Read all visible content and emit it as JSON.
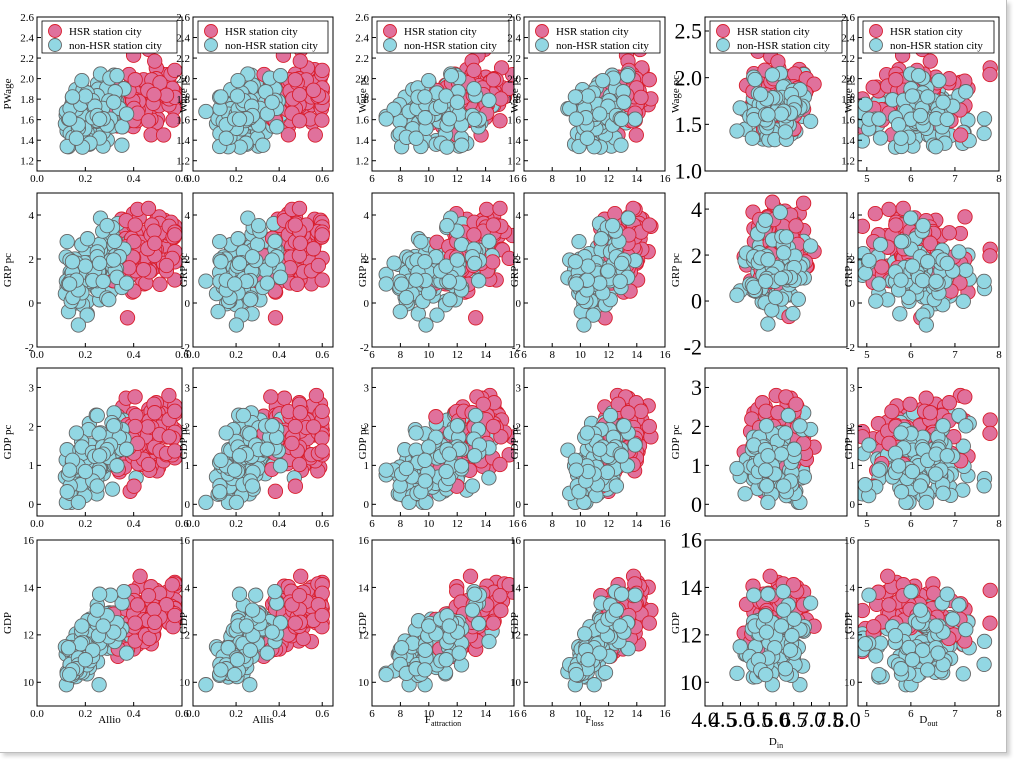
{
  "chart_data": {
    "type": "scatter",
    "legend": {
      "entries": [
        "HSR station city",
        "non-HSR station city"
      ],
      "placement": "top",
      "colors": {
        "HSR station city": "#e0719c",
        "non-HSR station city": "#92d7e3"
      }
    },
    "series_colors": {
      "hsr_fill": "#e0719c",
      "hsr_edge": "#d81e2c",
      "non_hsr_fill": "#92d7e3",
      "non_hsr_edge": "#666666"
    },
    "columns": [
      {
        "xlabel": "Allio",
        "xlabel_sub": "",
        "xlim": [
          0,
          0.6
        ],
        "xticks": [
          "0.0",
          "0.2",
          "0.4",
          "0.6"
        ],
        "xtick_values": [
          0,
          0.2,
          0.4,
          0.6
        ]
      },
      {
        "xlabel": "Allis",
        "xlabel_sub": "",
        "xlim": [
          0,
          0.65
        ],
        "xticks": [
          "0.0",
          "0.2",
          "0.4",
          "0.6"
        ],
        "xtick_values": [
          0,
          0.2,
          0.4,
          0.6
        ]
      },
      {
        "xlabel": "F",
        "xlabel_sub": "attraction",
        "xlim": [
          6,
          16
        ],
        "xticks": [
          "6",
          "8",
          "10",
          "12",
          "14",
          "16"
        ],
        "xtick_values": [
          6,
          8,
          10,
          12,
          14,
          16
        ]
      },
      {
        "xlabel": "F",
        "xlabel_sub": "loss",
        "xlim": [
          6,
          16
        ],
        "xticks": [
          "6",
          "8",
          "10",
          "12",
          "14",
          "16"
        ],
        "xtick_values": [
          6,
          8,
          10,
          12,
          14,
          16
        ]
      },
      {
        "xlabel": "D",
        "xlabel_sub": "in",
        "xlim": [
          4.0,
          8.0
        ],
        "xticks": [
          "4.0",
          "4.5",
          "5.0",
          "5.5",
          "6.0",
          "6.5",
          "7.0",
          "7.5",
          "8.0"
        ],
        "xtick_values": [
          4.0,
          4.5,
          5.0,
          5.5,
          6.0,
          6.5,
          7.0,
          7.5,
          8.0
        ]
      },
      {
        "xlabel": "D",
        "xlabel_sub": "out",
        "xlim": [
          4.8,
          8
        ],
        "xticks": [
          "5",
          "6",
          "7",
          "8"
        ],
        "xtick_values": [
          5,
          6,
          7,
          8
        ]
      }
    ],
    "rows": [
      {
        "ylabel": "Wage pc",
        "ylim": [
          1.1,
          2.6
        ],
        "yticks": [
          "1.2",
          "1.4",
          "1.6",
          "1.8",
          "2.0",
          "2.2",
          "2.4",
          "2.6"
        ],
        "ytick_values": [
          1.2,
          1.4,
          1.6,
          1.8,
          2.0,
          2.2,
          2.4,
          2.6
        ]
      },
      {
        "ylabel": "GRP pc",
        "ylim": [
          -2,
          5
        ],
        "yticks": [
          "-2",
          "0",
          "2",
          "4"
        ],
        "ytick_values": [
          -2,
          0,
          2,
          4
        ]
      },
      {
        "ylabel": "GDP pc",
        "ylim": [
          -0.3,
          3.5
        ],
        "yticks": [
          "0",
          "1",
          "2",
          "3"
        ],
        "ytick_values": [
          0,
          1,
          2,
          3
        ]
      },
      {
        "ylabel": "GDP",
        "ylim": [
          9,
          16
        ],
        "yticks": [
          "10",
          "12",
          "14",
          "16"
        ],
        "ytick_values": [
          10,
          12,
          14,
          16
        ]
      }
    ],
    "panel_ylabels": [
      [
        "PWage",
        "Wage pc",
        "Wage pc",
        "Wage pc",
        "Wage pc",
        "Wage pc"
      ],
      [
        "GRP pc",
        "GRP pc",
        "GRP pc",
        "GRP pc",
        "GRP pc",
        "GRP pc"
      ],
      [
        "GDP pc",
        "GDP pc",
        "GDP pc",
        "GDP pc",
        "GDP pc",
        "GDP pc"
      ],
      [
        "GDP",
        "GDP",
        "GDP",
        "GDP",
        "GDP",
        "GDP"
      ]
    ],
    "large_tick_panels": [
      {
        "row": 0,
        "col": 4,
        "yticks": [
          "1.0",
          "1.5",
          "2.0",
          "2.5"
        ],
        "ytick_values": [
          1.0,
          1.5,
          2.0,
          2.5
        ],
        "ylim": [
          1.0,
          2.65
        ]
      },
      {
        "row": 1,
        "col": 4,
        "yticks": [
          "-2",
          "0",
          "2",
          "4"
        ],
        "ytick_values": [
          -2,
          0,
          2,
          4
        ],
        "ylim": [
          -2,
          4.7
        ]
      },
      {
        "row": 2,
        "col": 4,
        "yticks": [
          "0",
          "1",
          "2",
          "3"
        ],
        "ytick_values": [
          0,
          1,
          2,
          3
        ],
        "ylim": [
          -0.3,
          3.5
        ]
      },
      {
        "row": 3,
        "col": 4,
        "yticks": [
          "10",
          "12",
          "14",
          "16"
        ],
        "ytick_values": [
          10,
          12,
          14,
          16
        ],
        "ylim": [
          9,
          16
        ]
      }
    ],
    "point_sets": {
      "description_note": "",
      "hsr_count": 110,
      "non_hsr_count": 130
    }
  }
}
